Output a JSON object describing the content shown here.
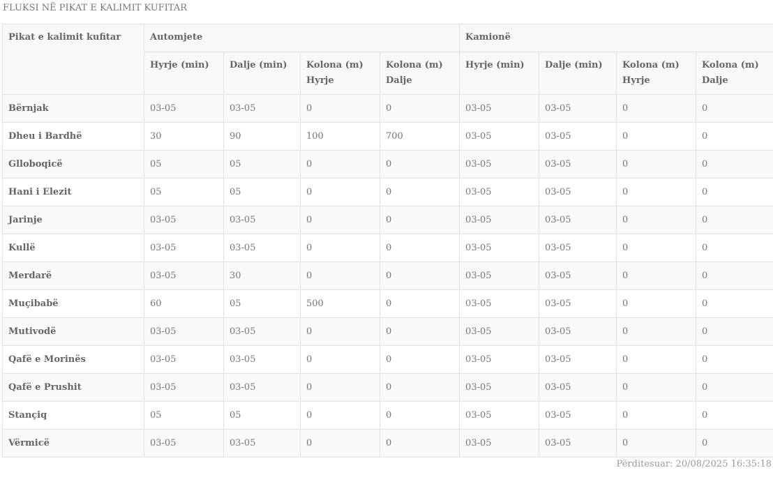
{
  "title": "FLUKSI NË PIKAT E KALIMIT KUFITAR",
  "table": {
    "first_header": "Pikat e kalimit kufitar",
    "groups": [
      "Automjete",
      "Kamionë"
    ],
    "subheaders": [
      "Hyrje (min)",
      "Dalje (min)",
      "Kolona (m) Hyrje",
      "Kolona (m) Dalje"
    ],
    "rows": [
      {
        "name": "Bërnjak",
        "values": [
          "03-05",
          "03-05",
          "0",
          "0",
          "03-05",
          "03-05",
          "0",
          "0"
        ]
      },
      {
        "name": "Dheu i Bardhë",
        "values": [
          "30",
          "90",
          "100",
          "700",
          "03-05",
          "03-05",
          "0",
          "0"
        ]
      },
      {
        "name": "Glloboqicë",
        "values": [
          "05",
          "05",
          "0",
          "0",
          "03-05",
          "03-05",
          "0",
          "0"
        ]
      },
      {
        "name": "Hani i Elezit",
        "values": [
          "05",
          "05",
          "0",
          "0",
          "03-05",
          "03-05",
          "0",
          "0"
        ]
      },
      {
        "name": "Jarinje",
        "values": [
          "03-05",
          "03-05",
          "0",
          "0",
          "03-05",
          "03-05",
          "0",
          "0"
        ]
      },
      {
        "name": "Kullë",
        "values": [
          "03-05",
          "03-05",
          "0",
          "0",
          "03-05",
          "03-05",
          "0",
          "0"
        ]
      },
      {
        "name": "Merdarë",
        "values": [
          "03-05",
          "30",
          "0",
          "0",
          "03-05",
          "03-05",
          "0",
          "0"
        ]
      },
      {
        "name": "Muçibabë",
        "values": [
          "60",
          "05",
          "500",
          "0",
          "03-05",
          "03-05",
          "0",
          "0"
        ]
      },
      {
        "name": "Mutivodë",
        "values": [
          "03-05",
          "03-05",
          "0",
          "0",
          "03-05",
          "03-05",
          "0",
          "0"
        ]
      },
      {
        "name": "Qafë e Morinës",
        "values": [
          "03-05",
          "03-05",
          "0",
          "0",
          "03-05",
          "03-05",
          "0",
          "0"
        ]
      },
      {
        "name": "Qafë e Prushit",
        "values": [
          "03-05",
          "03-05",
          "0",
          "0",
          "03-05",
          "03-05",
          "0",
          "0"
        ]
      },
      {
        "name": "Stançiq",
        "values": [
          "05",
          "05",
          "0",
          "0",
          "03-05",
          "03-05",
          "0",
          "0"
        ]
      },
      {
        "name": "Vërmicë",
        "values": [
          "03-05",
          "03-05",
          "0",
          "0",
          "03-05",
          "03-05",
          "0",
          "0"
        ]
      }
    ]
  },
  "updated": "Përditesuar: 20/08/2025 16:35:18"
}
